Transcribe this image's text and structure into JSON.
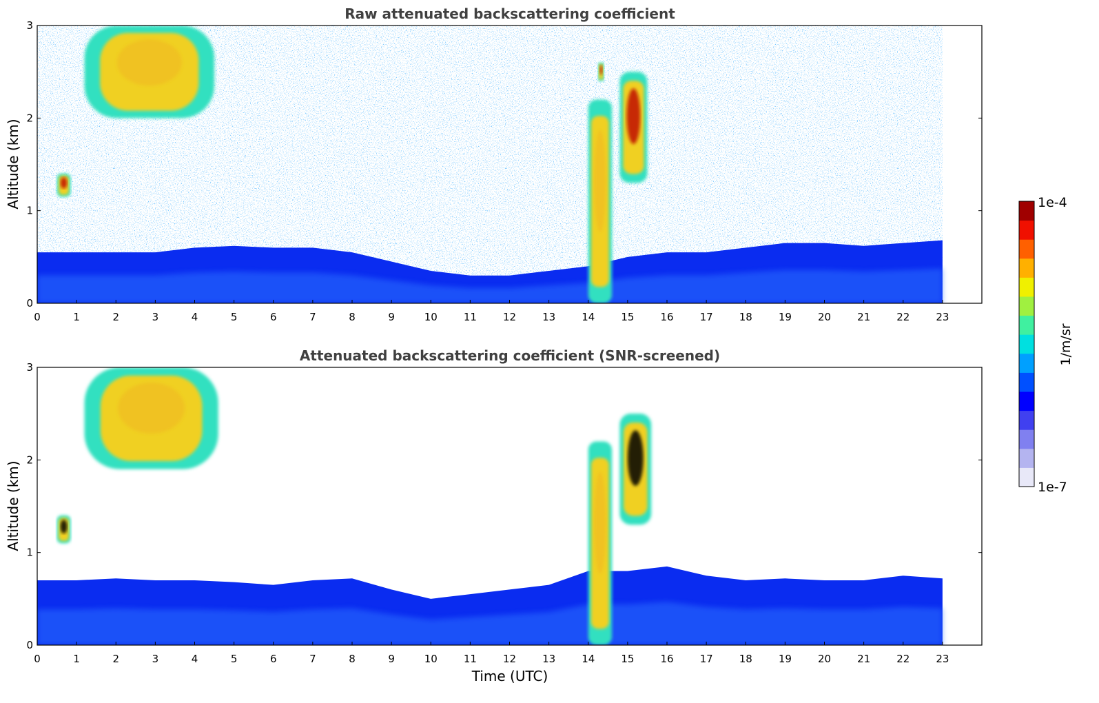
{
  "chart_data": [
    {
      "type": "heatmap",
      "title": "Raw attenuated backscattering coefficient",
      "xlabel": "",
      "ylabel": "Altitude (km)",
      "xlim": [
        0,
        24
      ],
      "ylim": [
        0,
        3
      ],
      "x_ticks": [
        "0",
        "1",
        "2",
        "3",
        "4",
        "5",
        "6",
        "7",
        "8",
        "9",
        "10",
        "11",
        "12",
        "13",
        "14",
        "15",
        "16",
        "17",
        "18",
        "19",
        "20",
        "21",
        "22",
        "23"
      ],
      "y_ticks": [
        "0",
        "1",
        "2",
        "3"
      ],
      "data_end_hour": 23,
      "screened": false,
      "features": [
        {
          "kind": "boundary_layer",
          "x_range": [
            0,
            23
          ],
          "top_km_by_hour": [
            0.55,
            0.55,
            0.55,
            0.55,
            0.6,
            0.62,
            0.6,
            0.6,
            0.55,
            0.45,
            0.35,
            0.3,
            0.3,
            0.35,
            0.4,
            0.5,
            0.55,
            0.55,
            0.6,
            0.65,
            0.65,
            0.62,
            0.65,
            0.68
          ],
          "level": "1e-6"
        },
        {
          "kind": "cloud",
          "x_range": [
            1.2,
            4.5
          ],
          "altitude_km": [
            2.0,
            3.0
          ],
          "peak": "1e-5"
        },
        {
          "kind": "cloud",
          "x_range": [
            0.5,
            0.85
          ],
          "altitude_km": [
            1.15,
            1.4
          ],
          "peak": "1e-4"
        },
        {
          "kind": "convective_column",
          "x_range": [
            14.0,
            14.6
          ],
          "altitude_km": [
            0,
            2.2
          ],
          "peak": "1e-5"
        },
        {
          "kind": "cloud",
          "x_range": [
            14.8,
            15.5
          ],
          "altitude_km": [
            1.3,
            2.5
          ],
          "peak": "1e-4"
        },
        {
          "kind": "cloud",
          "x_range": [
            14.25,
            14.4
          ],
          "altitude_km": [
            2.4,
            2.6
          ],
          "peak": "1e-4"
        }
      ]
    },
    {
      "type": "heatmap",
      "title": "Attenuated backscattering coefficient (SNR-screened)",
      "xlabel": "Time (UTC)",
      "ylabel": "Altitude (km)",
      "xlim": [
        0,
        24
      ],
      "ylim": [
        0,
        3
      ],
      "x_ticks": [
        "0",
        "1",
        "2",
        "3",
        "4",
        "5",
        "6",
        "7",
        "8",
        "9",
        "10",
        "11",
        "12",
        "13",
        "14",
        "15",
        "16",
        "17",
        "18",
        "19",
        "20",
        "21",
        "22",
        "23"
      ],
      "y_ticks": [
        "0",
        "1",
        "2",
        "3"
      ],
      "data_end_hour": 23,
      "screened": true,
      "features": [
        {
          "kind": "boundary_layer",
          "x_range": [
            0,
            23
          ],
          "top_km_by_hour": [
            0.7,
            0.7,
            0.72,
            0.7,
            0.7,
            0.68,
            0.65,
            0.7,
            0.72,
            0.6,
            0.5,
            0.55,
            0.6,
            0.65,
            0.8,
            0.8,
            0.85,
            0.75,
            0.7,
            0.72,
            0.7,
            0.7,
            0.75,
            0.72
          ],
          "level": "1e-6"
        },
        {
          "kind": "cloud",
          "x_range": [
            1.2,
            4.6
          ],
          "altitude_km": [
            1.9,
            3.0
          ],
          "peak": "1e-5"
        },
        {
          "kind": "cloud",
          "x_range": [
            0.5,
            0.85
          ],
          "altitude_km": [
            1.1,
            1.4
          ],
          "peak": "saturated"
        },
        {
          "kind": "convective_column",
          "x_range": [
            14.0,
            14.6
          ],
          "altitude_km": [
            0,
            2.2
          ],
          "peak": "1e-5"
        },
        {
          "kind": "cloud",
          "x_range": [
            14.8,
            15.6
          ],
          "altitude_km": [
            1.3,
            2.5
          ],
          "peak": "saturated"
        }
      ]
    }
  ],
  "colorbar": {
    "label": "1/m/sr",
    "max_label": "1e-4",
    "min_label": "1e-7",
    "scale": "log",
    "colors": [
      "#e8e8f8",
      "#b4b4f0",
      "#8080f0",
      "#4040f0",
      "#0000ff",
      "#0050ff",
      "#00a0ff",
      "#00e0e0",
      "#40f0a0",
      "#a0f040",
      "#f0f000",
      "#ffb000",
      "#ff6000",
      "#f01000",
      "#a00000"
    ]
  },
  "colors": {
    "panel_title": "#404040",
    "background_noise": "#0040ff"
  }
}
